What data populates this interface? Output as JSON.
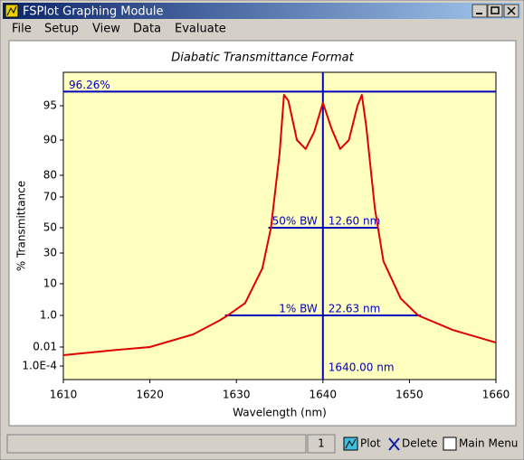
{
  "window": {
    "title": "FSPlot Graphing Module"
  },
  "menu": [
    "File",
    "Setup",
    "View",
    "Data",
    "Evaluate"
  ],
  "chart_data": {
    "type": "line",
    "title": "Diabatic Transmittance Format",
    "x_label": "Wavelength (nm)",
    "y_label": "% Transmittance",
    "y_scale": "diabatic",
    "background": "#ffffc0",
    "annotation_color": "#0000c0",
    "xlim": [
      1610,
      1660
    ],
    "xticks": [
      1610,
      1620,
      1630,
      1640,
      1650,
      1660
    ],
    "ylim": [
      1e-05,
      97.5
    ],
    "yticks": [
      {
        "value": 0.0001,
        "label": "1.0E-4"
      },
      0.01,
      {
        "value": 1,
        "label": "1.0"
      },
      10,
      30,
      50,
      70,
      80,
      90,
      95
    ],
    "series": [
      {
        "color": "#e00000",
        "x": [
          1610,
          1615,
          1620,
          1625,
          1628,
          1629,
          1631,
          1633,
          1634,
          1635,
          1635.5,
          1636,
          1637,
          1638,
          1639,
          1640,
          1641,
          1642,
          1643,
          1644,
          1644.5,
          1645,
          1646,
          1647,
          1649,
          1651,
          1655,
          1660
        ],
        "values": [
          0.0014,
          0.004,
          0.01,
          0.063,
          0.46,
          1,
          2.5,
          18,
          50,
          87,
          96,
          95.5,
          90,
          88,
          91.5,
          95.3,
          92,
          88,
          90,
          95,
          96,
          92.5,
          63,
          23,
          3.5,
          1,
          0.12,
          0.019
        ]
      }
    ],
    "hline": {
      "value": 96.26,
      "label": "96.26%"
    },
    "vline": {
      "value": 1640,
      "label": "1640.00 nm"
    },
    "bandwidths": [
      {
        "level": 50,
        "level_label": "50% BW",
        "width": 12.6,
        "width_label": "12.60 nm"
      },
      {
        "level": 1,
        "level_label": "1% BW",
        "width": 22.63,
        "width_label": "22.63 nm"
      }
    ]
  },
  "status_bar": {
    "page": "1",
    "buttons": [
      "Plot",
      "Delete",
      "Main Menu"
    ]
  }
}
